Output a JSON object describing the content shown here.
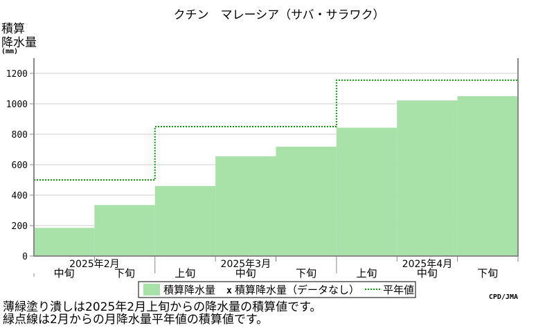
{
  "chart_data": {
    "type": "area",
    "title": "クチン　マレーシア（サバ・サラワク）",
    "ylabel_lines": [
      "積算",
      "降水量",
      "(mm)"
    ],
    "ylim": [
      0,
      1300
    ],
    "yticks": [
      0,
      200,
      400,
      600,
      800,
      1000,
      1200
    ],
    "periods": [
      {
        "month": "2025年2月",
        "dekad": "中旬"
      },
      {
        "month": "2025年2月",
        "dekad": "下旬"
      },
      {
        "month": "2025年3月",
        "dekad": "上旬"
      },
      {
        "month": "2025年3月",
        "dekad": "中旬"
      },
      {
        "month": "2025年3月",
        "dekad": "下旬"
      },
      {
        "month": "2025年4月",
        "dekad": "上旬"
      },
      {
        "month": "2025年4月",
        "dekad": "中旬"
      },
      {
        "month": "2025年4月",
        "dekad": "下旬"
      }
    ],
    "x_group_labels": [
      "2025年2月",
      "2025年3月",
      "2025年4月"
    ],
    "dekad_labels": [
      "中旬",
      "下旬",
      "上旬",
      "中旬",
      "下旬",
      "上旬",
      "中旬",
      "下旬"
    ],
    "series": [
      {
        "name": "積算降水量",
        "style": "filled-step",
        "color": "#a8e2a8",
        "values": [
          185,
          335,
          460,
          655,
          718,
          843,
          1022,
          1050
        ]
      },
      {
        "name": "平年値",
        "style": "dotted-step",
        "color": "#009900",
        "values": [
          500,
          500,
          850,
          850,
          850,
          1155,
          1155,
          1155
        ]
      }
    ],
    "legend": {
      "entries": [
        "積算降水量",
        "積算降水量（データなし）",
        "平年値"
      ],
      "missing_marker": "x",
      "placement": "bottom-center"
    },
    "credit": "CPD/JMA",
    "grid": true
  },
  "notes": [
    "薄緑塗り潰しは2025年2月上旬からの降水量の積算値です。",
    "緑点線は2月からの月降水量平年値の積算値です。"
  ]
}
